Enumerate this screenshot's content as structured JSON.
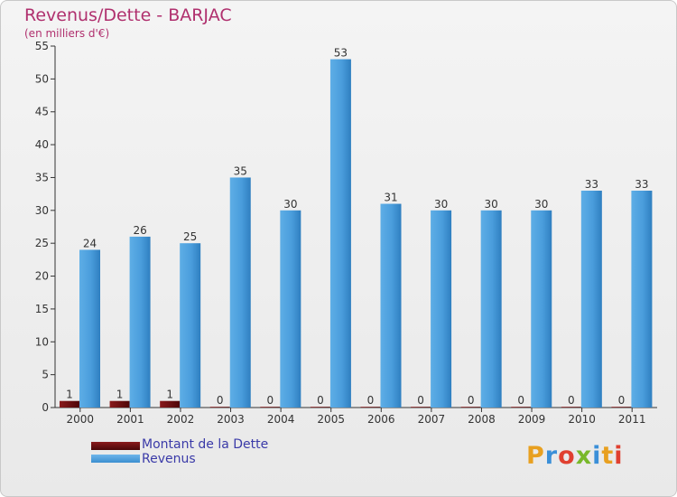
{
  "title": "Revenus/Dette - BARJAC",
  "subtitle": "(en milliers d'€)",
  "logo": "Proxiti",
  "colors": {
    "dette": "#6e0e10",
    "revenus": "#4f9fdc",
    "title": "#b0306e",
    "legend_text": "#3a3aa8"
  },
  "chart_data": {
    "type": "bar",
    "categories": [
      "2000",
      "2001",
      "2002",
      "2003",
      "2004",
      "2005",
      "2006",
      "2007",
      "2008",
      "2009",
      "2010",
      "2011"
    ],
    "series": [
      {
        "name": "Montant de la Dette",
        "values": [
          1,
          1,
          1,
          0,
          0,
          0,
          0,
          0,
          0,
          0,
          0,
          0
        ]
      },
      {
        "name": "Revenus",
        "values": [
          24,
          26,
          25,
          35,
          30,
          53,
          31,
          30,
          30,
          30,
          33,
          33
        ]
      }
    ],
    "yticks": [
      0,
      5,
      10,
      15,
      20,
      25,
      30,
      35,
      40,
      45,
      50,
      55
    ],
    "ylim": [
      0,
      55
    ],
    "grid": false,
    "legend": "bottom-left"
  }
}
